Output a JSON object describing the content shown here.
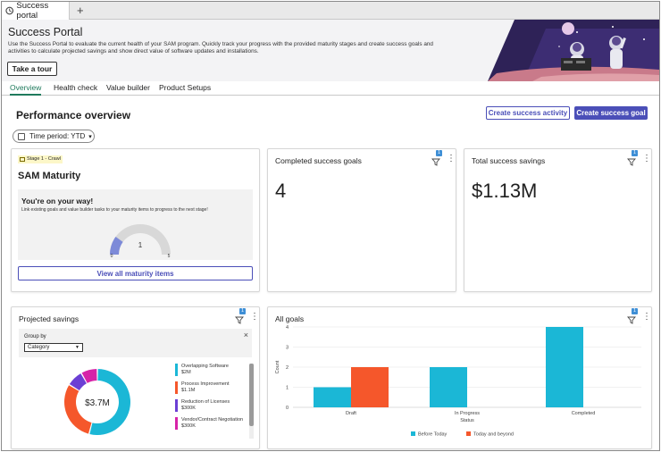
{
  "browser_tab": {
    "title": "Success portal",
    "new_tab": "+"
  },
  "header": {
    "title": "Success Portal",
    "description": "Use the Success Portal to evaluate the current health of your SAM program. Quickly track your progress with the provided maturity stages and create success goals and activities to calculate projected savings and show direct value of software updates and installations.",
    "tour_button": "Take a tour"
  },
  "nav_tabs": [
    {
      "label": "Overview",
      "active": true
    },
    {
      "label": "Health check",
      "active": false
    },
    {
      "label": "Value builder",
      "active": false
    },
    {
      "label": "Product Setups",
      "active": false
    }
  ],
  "main": {
    "title": "Performance overview",
    "create_activity_button": "Create success activity",
    "create_goal_button": "Create success goal",
    "time_period": "Time period: YTD"
  },
  "maturity_card": {
    "stage_tag": "Stage 1 - Crawl",
    "title": "SAM Maturity",
    "box_title": "You're on your way!",
    "box_subtitle": "Link existing goals and value builder tasks to your maturity items to progress to the next stage!",
    "gauge": {
      "value": 1,
      "min": 0,
      "max": 5,
      "value_label": "1",
      "min_label": "0",
      "max_label": "5"
    },
    "view_button": "View all maturity items"
  },
  "completed_goals_card": {
    "title": "Completed success goals",
    "value": "4",
    "filter_badge": "1"
  },
  "total_savings_card": {
    "title": "Total success savings",
    "value": "$1.13M",
    "filter_badge": "1"
  },
  "projected_savings_card": {
    "title": "Projected savings",
    "filter_badge": "1",
    "group_by_label": "Group by",
    "group_by_value": "Category",
    "close_icon": "×",
    "center_label": "$3.7M",
    "legend": [
      {
        "name": "Overlapping Software",
        "value": "$2M",
        "color": "#1bb7d6"
      },
      {
        "name": "Process Improvement",
        "value": "$1.1M",
        "color": "#f5572b"
      },
      {
        "name": "Reduction of Licenses",
        "value": "$300K",
        "color": "#6b3fd4"
      },
      {
        "name": "Vendor/Contract Negotiation",
        "value": "$300K",
        "color": "#d623a8"
      }
    ]
  },
  "all_goals_card": {
    "title": "All goals",
    "filter_badge": "1"
  },
  "chart_data": {
    "type": "bar",
    "title": "",
    "xlabel": "Status",
    "ylabel": "Count",
    "categories": [
      "Draft",
      "In Progress",
      "Completed"
    ],
    "series": [
      {
        "name": "Before Today",
        "values": [
          1,
          2,
          4
        ],
        "color": "#1bb7d6"
      },
      {
        "name": "Today and beyond",
        "values": [
          2,
          0,
          0
        ],
        "color": "#f5572b"
      }
    ],
    "yticks": [
      "0",
      "1",
      "2",
      "3",
      "4"
    ],
    "ylim": [
      0,
      4
    ],
    "grid": true,
    "legend_position": "bottom"
  }
}
